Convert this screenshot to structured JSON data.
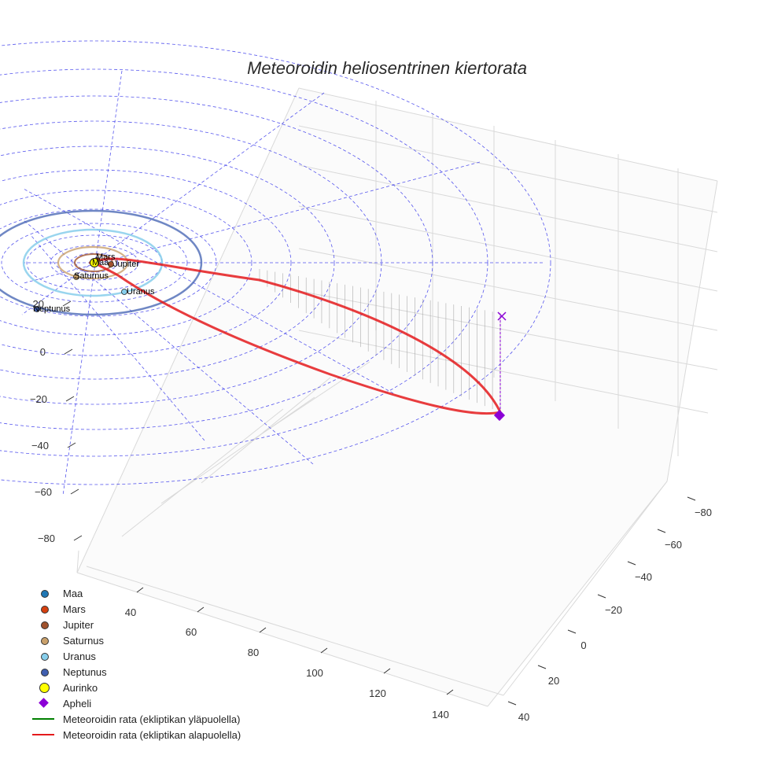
{
  "chart_data": {
    "type": "line",
    "title": "Meteoroidin heliosentrinen kiertorata",
    "xlabel": "",
    "ylabel": "",
    "zlabel": "",
    "x_ticks": [
      "40",
      "60",
      "80",
      "100",
      "120",
      "140"
    ],
    "y_ticks": [
      "−80",
      "−60",
      "−40",
      "−20",
      "0",
      "20",
      "40"
    ],
    "z_ticks": [
      "20",
      "0",
      "−20",
      "−40",
      "−60",
      "−80"
    ],
    "grid": true,
    "legend_position": "bottom-left",
    "legend": [
      {
        "label": "Maa",
        "symbol": "dot",
        "color": "#1f77b4"
      },
      {
        "label": "Mars",
        "symbol": "dot",
        "color": "#d6400f"
      },
      {
        "label": "Jupiter",
        "symbol": "dot",
        "color": "#a0522d"
      },
      {
        "label": "Saturnus",
        "symbol": "dot",
        "color": "#c9a06b"
      },
      {
        "label": "Uranus",
        "symbol": "dot",
        "color": "#87ceeb"
      },
      {
        "label": "Neptunus",
        "symbol": "dot",
        "color": "#3f5fb0"
      },
      {
        "label": "Aurinko",
        "symbol": "big-dot",
        "color": "#ffff00"
      },
      {
        "label": "Apheli",
        "symbol": "diamond",
        "color": "#8b00d6"
      },
      {
        "label": "Meteoroidin rata (ekliptikan yläpuolella)",
        "symbol": "line",
        "color": "#008000"
      },
      {
        "label": "Meteoroidin rata (ekliptikan alapuolella)",
        "symbol": "line",
        "color": "#e41a1c"
      }
    ],
    "planet_labels": [
      "Mars",
      "Maa",
      "Jupiter",
      "Saturnus",
      "Uranus",
      "Neptunus"
    ],
    "series": [
      {
        "name": "Meteoroidin rata (ekliptikan alapuolella)",
        "color": "#e41a1c"
      }
    ]
  }
}
